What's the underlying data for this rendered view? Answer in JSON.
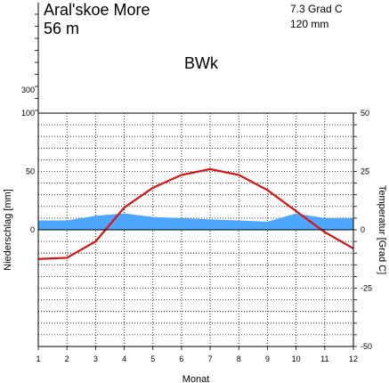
{
  "chart_data": {
    "type": "climate-diagram",
    "station": "Aral'skoe More",
    "elevation": "56 m",
    "mean_temperature": "7.3 Grad C",
    "annual_precipitation": "120 mm",
    "climate_class": "BWk",
    "xlabel": "Monat",
    "ylabel_left": "Niederschlag [mm]",
    "ylabel_right": "Temperatur [Grad C]",
    "months": [
      "1",
      "2",
      "3",
      "4",
      "5",
      "6",
      "7",
      "8",
      "9",
      "10",
      "11",
      "12"
    ],
    "precip_ticks": [
      "300",
      "100",
      "50",
      "0"
    ],
    "temp_ticks": [
      "50",
      "25",
      "0",
      "-25",
      "-50"
    ],
    "precip_ylim": [
      -100,
      400
    ],
    "temp_ylim": [
      -50,
      50
    ],
    "series": [
      {
        "name": "Niederschlag",
        "unit": "mm",
        "color": "#4da6ff",
        "values": [
          8,
          8,
          12,
          14,
          11,
          10,
          9,
          8,
          7,
          14,
          10,
          10
        ]
      },
      {
        "name": "Temperatur",
        "unit": "Grad C",
        "color": "#dd1111",
        "values": [
          -12.5,
          -12,
          -5,
          9.5,
          18,
          23.5,
          26,
          23.5,
          17,
          8,
          -1,
          -8
        ]
      }
    ]
  }
}
